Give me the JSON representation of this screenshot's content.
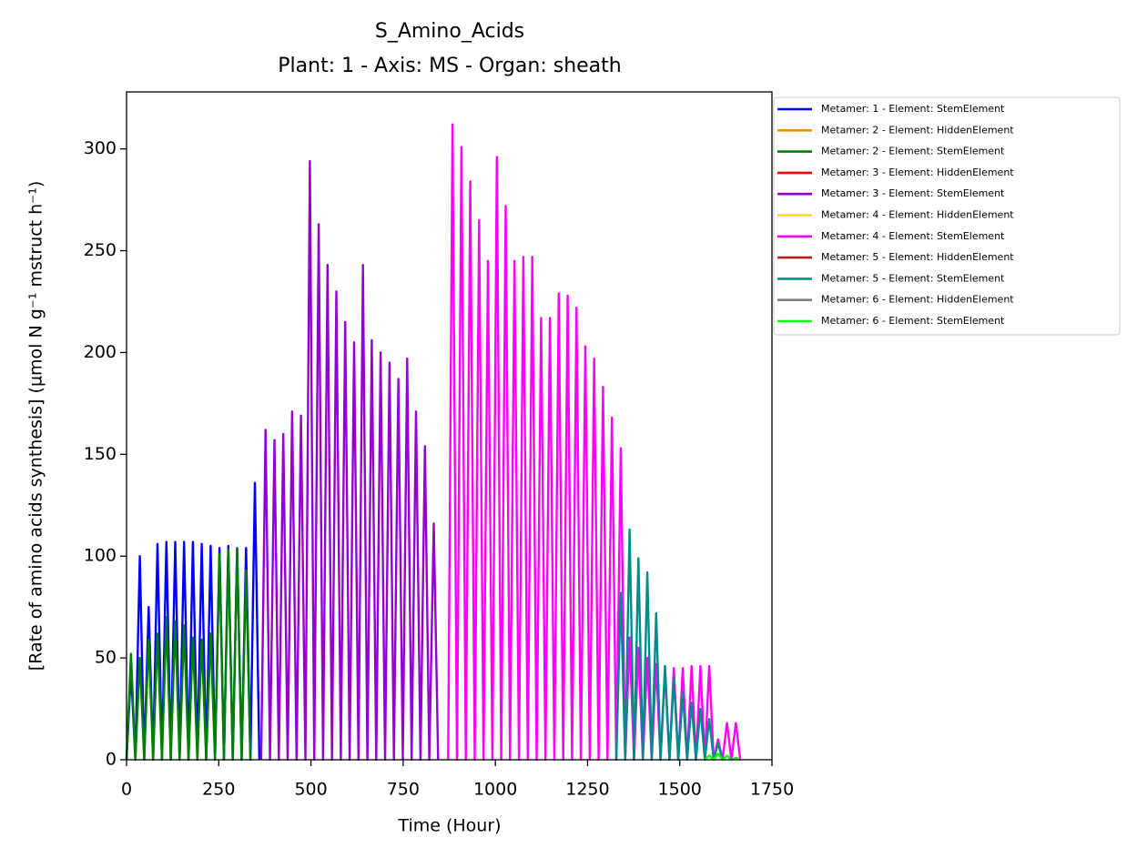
{
  "chart_data": {
    "type": "line",
    "title": "S_Amino_Acids",
    "subtitle": "Plant: 1 - Axis: MS - Organ: sheath",
    "x_label": "Time (Hour)",
    "y_label": "[Rate of amino acids synthesis] (µmol N g⁻¹ mstruct h⁻¹)",
    "xlim": [
      0,
      1750
    ],
    "ylim": [
      0,
      328
    ],
    "xticks": [
      0,
      250,
      500,
      750,
      1000,
      1250,
      1500,
      1750
    ],
    "yticks": [
      0,
      50,
      100,
      150,
      200,
      250,
      300
    ],
    "legend": "outside-upper-right",
    "series": [
      {
        "name": "Metamer: 1 - Element: StemElement",
        "color": "#0000ff",
        "x": [
          0,
          12,
          24,
          36,
          48,
          60,
          72,
          84,
          96,
          108,
          120,
          132,
          144,
          156,
          168,
          180,
          192,
          204,
          216,
          228,
          240,
          252,
          264,
          276,
          288,
          300,
          312,
          324,
          336,
          348,
          360
        ],
        "values": [
          0,
          44,
          0,
          100,
          0,
          75,
          0,
          106,
          0,
          107,
          0,
          107,
          0,
          107,
          0,
          107,
          0,
          106,
          0,
          105,
          0,
          104,
          0,
          105,
          0,
          104,
          0,
          104,
          0,
          136,
          0
        ]
      },
      {
        "name": "Metamer: 2 - Element: HiddenElement",
        "color": "#ff8c00",
        "x": [],
        "values": []
      },
      {
        "name": "Metamer: 2 - Element: StemElement",
        "color": "#008000",
        "x": [
          0,
          12,
          24,
          36,
          48,
          60,
          72,
          84,
          96,
          108,
          120,
          132,
          144,
          156,
          168,
          180,
          192,
          204,
          216,
          228,
          240,
          252,
          264,
          276,
          288,
          300,
          312,
          324,
          336
        ],
        "values": [
          0,
          52,
          0,
          50,
          0,
          59,
          0,
          62,
          0,
          70,
          0,
          68,
          0,
          66,
          0,
          60,
          0,
          59,
          0,
          62,
          0,
          101,
          0,
          103,
          0,
          104,
          0,
          93,
          0
        ]
      },
      {
        "name": "Metamer: 3 - Element: HiddenElement",
        "color": "#ff0000",
        "x": [],
        "values": []
      },
      {
        "name": "Metamer: 3 - Element: StemElement",
        "color": "#9400d3",
        "x": [
          365,
          377,
          389,
          401,
          413,
          425,
          437,
          449,
          461,
          473,
          485,
          497,
          509,
          521,
          533,
          545,
          557,
          569,
          581,
          593,
          605,
          617,
          629,
          641,
          653,
          665,
          677,
          689,
          701,
          713,
          725,
          737,
          749,
          761,
          773,
          785,
          797,
          809,
          821,
          833,
          845
        ],
        "values": [
          0,
          162,
          0,
          157,
          0,
          160,
          0,
          171,
          0,
          169,
          0,
          294,
          0,
          263,
          0,
          243,
          0,
          230,
          0,
          215,
          0,
          205,
          0,
          243,
          0,
          206,
          0,
          200,
          0,
          195,
          0,
          187,
          0,
          197,
          0,
          171,
          0,
          154,
          0,
          116,
          0
        ]
      },
      {
        "name": "Metamer: 4 - Element: HiddenElement",
        "color": "#ffd700",
        "x": [],
        "values": []
      },
      {
        "name": "Metamer: 4 - Element: StemElement",
        "color": "#ff00ff",
        "x": [
          872,
          884,
          896,
          908,
          920,
          932,
          944,
          956,
          968,
          980,
          992,
          1004,
          1016,
          1028,
          1040,
          1052,
          1064,
          1076,
          1088,
          1100,
          1112,
          1124,
          1136,
          1148,
          1160,
          1172,
          1184,
          1196,
          1208,
          1220,
          1232,
          1244,
          1256,
          1268,
          1280,
          1292,
          1304,
          1316,
          1328,
          1340,
          1352,
          1364,
          1376,
          1388,
          1400,
          1412,
          1424,
          1436,
          1448,
          1460,
          1472,
          1484,
          1496,
          1508,
          1520,
          1532,
          1544,
          1556,
          1568,
          1580,
          1592,
          1604,
          1616,
          1628,
          1640,
          1652,
          1664
        ],
        "values": [
          0,
          312,
          0,
          301,
          0,
          284,
          0,
          265,
          0,
          245,
          0,
          296,
          0,
          272,
          0,
          245,
          0,
          247,
          0,
          247,
          0,
          217,
          0,
          217,
          0,
          229,
          0,
          228,
          0,
          222,
          0,
          203,
          0,
          197,
          0,
          183,
          0,
          168,
          0,
          153,
          0,
          60,
          0,
          55,
          0,
          50,
          0,
          47,
          0,
          44,
          0,
          45,
          0,
          45,
          0,
          46,
          0,
          46,
          0,
          46,
          0,
          10,
          0,
          18,
          0,
          18,
          0
        ]
      },
      {
        "name": "Metamer: 5 - Element: HiddenElement",
        "color": "#b22222",
        "x": [],
        "values": []
      },
      {
        "name": "Metamer: 5 - Element: StemElement",
        "color": "#008b8b",
        "x": [
          1328,
          1340,
          1352,
          1364,
          1376,
          1388,
          1400,
          1412,
          1424,
          1436,
          1448,
          1460,
          1472,
          1484,
          1496,
          1508,
          1520,
          1532,
          1544,
          1556,
          1568,
          1580,
          1592,
          1604,
          1616
        ],
        "values": [
          0,
          82,
          0,
          113,
          0,
          99,
          0,
          92,
          0,
          72,
          0,
          46,
          0,
          40,
          0,
          33,
          0,
          28,
          0,
          25,
          0,
          20,
          0,
          8,
          0
        ]
      },
      {
        "name": "Metamer: 6 - Element: HiddenElement",
        "color": "#808080",
        "x": [],
        "values": []
      },
      {
        "name": "Metamer: 6 - Element: StemElement",
        "color": "#00ff00",
        "x": [
          1568,
          1580,
          1592,
          1604,
          1616,
          1628,
          1640,
          1652,
          1664
        ],
        "values": [
          0,
          2,
          0,
          3,
          0,
          2,
          0,
          1,
          0
        ]
      }
    ]
  }
}
